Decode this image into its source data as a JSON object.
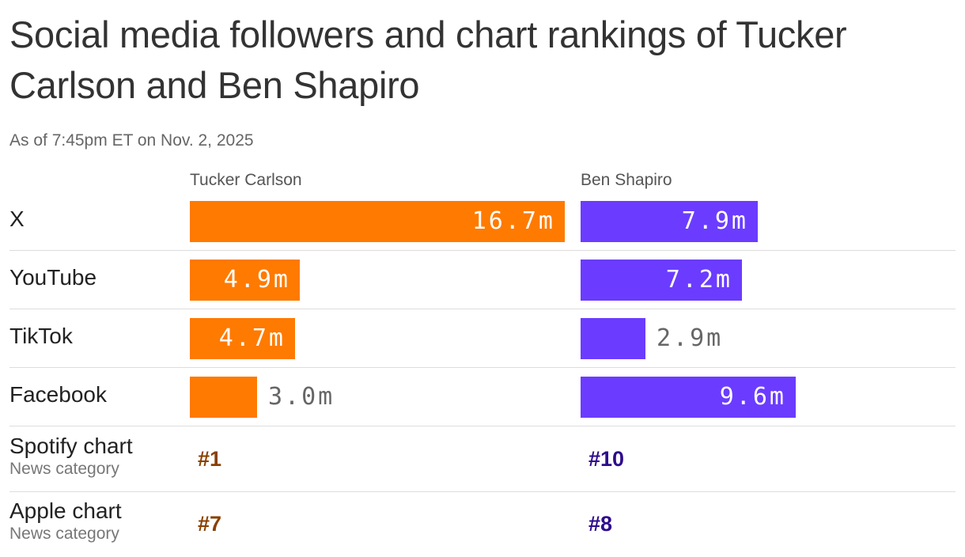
{
  "title": "Social media followers and chart rankings of Tucker Carlson and Ben Shapiro",
  "subtitle": "As of 7:45pm ET on Nov. 2, 2025",
  "colors": {
    "tucker_bar": "#FF7A00",
    "shapiro_bar": "#6B3CFF",
    "tucker_rank": "#8A4000",
    "shapiro_rank": "#2E0C8C",
    "label_inside": "#ffffff",
    "label_outside": "#666666"
  },
  "chart_data": {
    "type": "bar",
    "orientation": "horizontal",
    "categories": [
      "X",
      "YouTube",
      "TikTok",
      "Facebook"
    ],
    "unit": "m",
    "series": [
      {
        "name": "Tucker Carlson",
        "values": [
          16.7,
          4.9,
          4.7,
          3.0
        ],
        "labels": [
          "16.7m",
          "4.9m",
          "4.7m",
          "3.0m"
        ]
      },
      {
        "name": "Ben Shapiro",
        "values": [
          7.9,
          7.2,
          2.9,
          9.6
        ],
        "labels": [
          "7.9m",
          "7.2m",
          "2.9m",
          "9.6m"
        ]
      }
    ],
    "xlim": [
      0,
      16.7
    ]
  },
  "rankings": [
    {
      "label": "Spotify chart",
      "sublabel": "News category",
      "tucker": "#1",
      "shapiro": "#10"
    },
    {
      "label": "Apple chart",
      "sublabel": "News category",
      "tucker": "#7",
      "shapiro": "#8"
    }
  ]
}
